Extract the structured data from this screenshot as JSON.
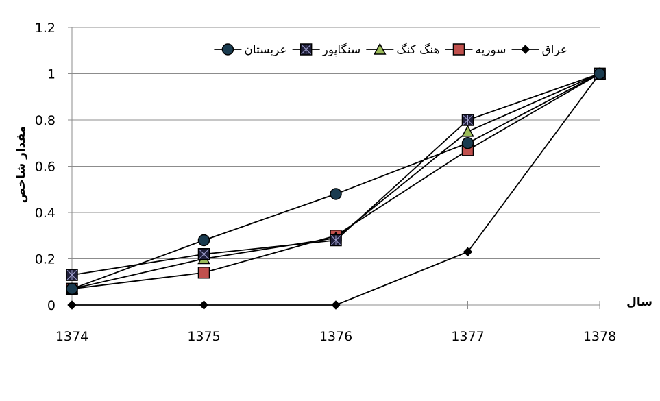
{
  "chart_data": {
    "type": "line",
    "x": [
      "1374",
      "1375",
      "1376",
      "1377",
      "1378"
    ],
    "ylabel": "مقدار شاخص",
    "xlabel": "سال",
    "ylim": [
      0,
      1.2
    ],
    "yticks": [
      "0",
      "0.2",
      "0.4",
      "0.6",
      "0.8",
      "1",
      "1.2"
    ],
    "grid": true,
    "legend_position": "top",
    "series": [
      {
        "name": "عراق",
        "marker": "diamond",
        "fill": "#000000",
        "values": [
          0,
          0,
          0,
          0.23,
          1
        ]
      },
      {
        "name": "سوریه",
        "marker": "square",
        "fill": "#c0504d",
        "values": [
          0.07,
          0.14,
          0.3,
          0.67,
          1
        ]
      },
      {
        "name": "هنگ کنگ",
        "marker": "triangle",
        "fill": "#9bbb59",
        "values": [
          0.07,
          0.2,
          0.29,
          0.75,
          1
        ]
      },
      {
        "name": "سنگاپور",
        "marker": "star-square",
        "fill": "#1f1f3a",
        "values": [
          0.13,
          0.22,
          0.28,
          0.8,
          1
        ]
      },
      {
        "name": "عربستان",
        "marker": "circle",
        "fill": "#1a3b4f",
        "values": [
          0.07,
          0.28,
          0.48,
          0.7,
          1
        ]
      }
    ]
  }
}
